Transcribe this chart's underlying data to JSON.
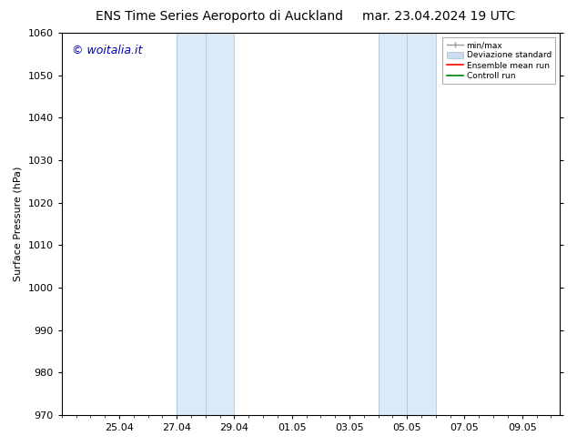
{
  "title_left": "ENS Time Series Aeroporto di Auckland",
  "title_right": "mar. 23.04.2024 19 UTC",
  "ylabel": "Surface Pressure (hPa)",
  "ylim": [
    970,
    1060
  ],
  "yticks": [
    970,
    980,
    990,
    1000,
    1010,
    1020,
    1030,
    1040,
    1050,
    1060
  ],
  "xtick_labels": [
    "25.04",
    "27.04",
    "29.04",
    "01.05",
    "03.05",
    "05.05",
    "07.05",
    "09.05"
  ],
  "xtick_positions": [
    2,
    4,
    6,
    8,
    10,
    12,
    14,
    16
  ],
  "xlim": [
    0,
    17.3
  ],
  "shaded_regions": [
    {
      "xmin": 4,
      "xmax": 5,
      "color": "#ddeeff",
      "alpha": 1.0
    },
    {
      "xmin": 5,
      "xmax": 6,
      "color": "#ddeeff",
      "alpha": 1.0
    },
    {
      "xmin": 11,
      "xmax": 12,
      "color": "#ddeeff",
      "alpha": 1.0
    },
    {
      "xmin": 12,
      "xmax": 13,
      "color": "#ddeeff",
      "alpha": 1.0
    }
  ],
  "shaded_borders": [
    {
      "x": 4,
      "color": "#b0c8e0"
    },
    {
      "x": 5,
      "color": "#b0c8e0"
    },
    {
      "x": 6,
      "color": "#b0c8e0"
    },
    {
      "x": 11,
      "color": "#b0c8e0"
    },
    {
      "x": 12,
      "color": "#b0c8e0"
    },
    {
      "x": 13,
      "color": "#b0c8e0"
    }
  ],
  "watermark_text": "© woitalia.it",
  "watermark_color": "#0000bb",
  "watermark_fontsize": 9,
  "bg_color": "#ffffff",
  "title_fontsize": 10,
  "axis_label_fontsize": 8,
  "tick_fontsize": 8
}
